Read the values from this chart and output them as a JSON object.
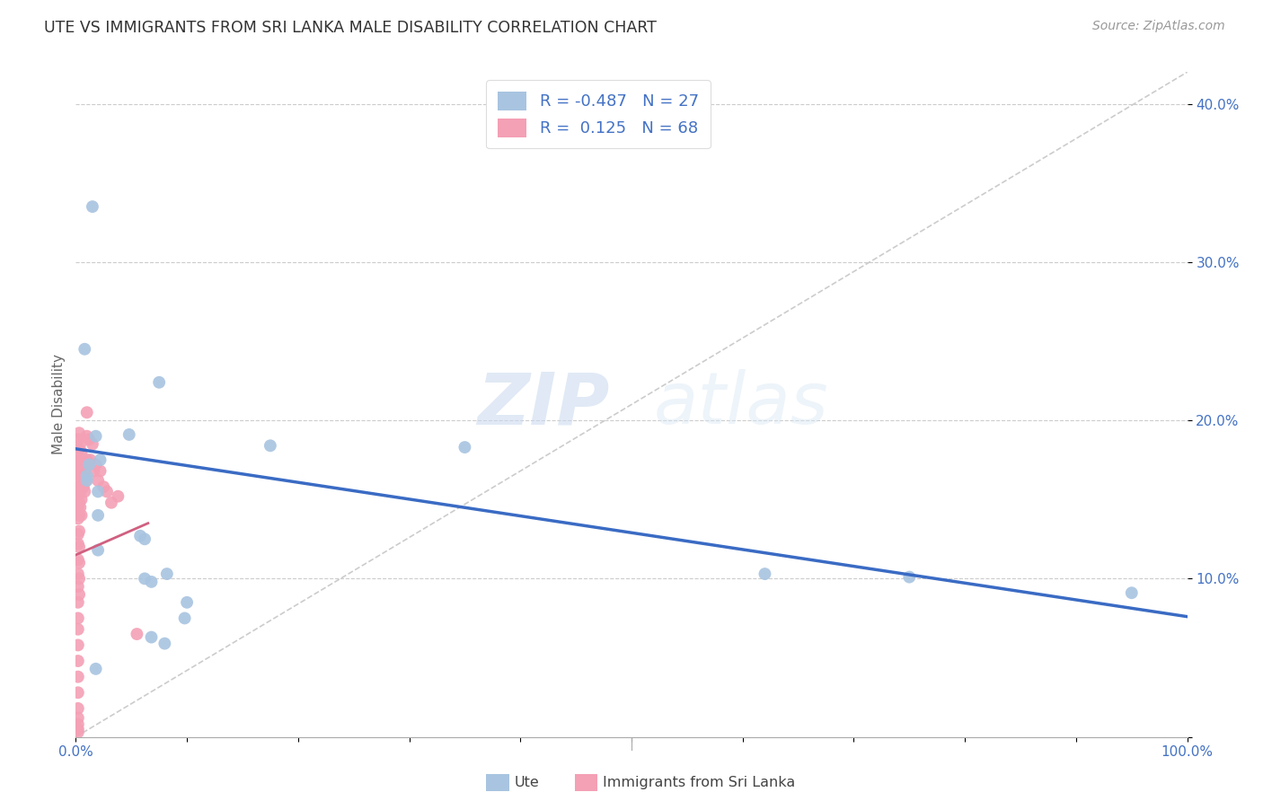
{
  "title": "UTE VS IMMIGRANTS FROM SRI LANKA MALE DISABILITY CORRELATION CHART",
  "source": "Source: ZipAtlas.com",
  "ylabel": "Male Disability",
  "watermark_zip": "ZIP",
  "watermark_atlas": "atlas",
  "xlim": [
    0.0,
    1.0
  ],
  "ylim": [
    0.0,
    0.42
  ],
  "xticks": [
    0.0,
    0.1,
    0.2,
    0.3,
    0.4,
    0.5,
    0.6,
    0.7,
    0.8,
    0.9,
    1.0
  ],
  "xticklabels": [
    "0.0%",
    "",
    "",
    "",
    "",
    "",
    "",
    "",
    "",
    "",
    "100.0%"
  ],
  "yticks": [
    0.0,
    0.1,
    0.2,
    0.3,
    0.4
  ],
  "yticklabels": [
    "",
    "10.0%",
    "20.0%",
    "30.0%",
    "40.0%"
  ],
  "legend_label1": "R = -0.487   N = 27",
  "legend_label2": "R =  0.125   N = 68",
  "ute_color": "#a8c4e0",
  "srilanka_color": "#f4a0b5",
  "ute_line_color": "#3a6bc4",
  "srilanka_line_color": "#d06080",
  "diagonal_color": "#cccccc",
  "ute_scatter_x": [
    0.015,
    0.008,
    0.075,
    0.018,
    0.048,
    0.175,
    0.022,
    0.012,
    0.01,
    0.01,
    0.02,
    0.02,
    0.35,
    0.02,
    0.058,
    0.062,
    0.082,
    0.062,
    0.068,
    0.62,
    0.75,
    0.95,
    0.1,
    0.098,
    0.08,
    0.018,
    0.068
  ],
  "ute_scatter_y": [
    0.335,
    0.245,
    0.224,
    0.19,
    0.191,
    0.184,
    0.175,
    0.172,
    0.165,
    0.162,
    0.155,
    0.14,
    0.183,
    0.118,
    0.127,
    0.125,
    0.103,
    0.1,
    0.098,
    0.103,
    0.101,
    0.091,
    0.085,
    0.075,
    0.059,
    0.043,
    0.063
  ],
  "srilanka_scatter_x": [
    0.002,
    0.002,
    0.002,
    0.002,
    0.002,
    0.002,
    0.002,
    0.002,
    0.002,
    0.002,
    0.002,
    0.002,
    0.002,
    0.002,
    0.002,
    0.002,
    0.002,
    0.002,
    0.002,
    0.002,
    0.002,
    0.002,
    0.002,
    0.002,
    0.003,
    0.003,
    0.003,
    0.003,
    0.003,
    0.003,
    0.003,
    0.003,
    0.003,
    0.003,
    0.003,
    0.003,
    0.004,
    0.004,
    0.004,
    0.004,
    0.004,
    0.005,
    0.005,
    0.005,
    0.005,
    0.005,
    0.006,
    0.006,
    0.007,
    0.007,
    0.008,
    0.008,
    0.009,
    0.01,
    0.01,
    0.01,
    0.012,
    0.013,
    0.015,
    0.016,
    0.018,
    0.02,
    0.022,
    0.025,
    0.028,
    0.032,
    0.038,
    0.055
  ],
  "srilanka_scatter_y": [
    0.188,
    0.175,
    0.168,
    0.158,
    0.152,
    0.145,
    0.138,
    0.128,
    0.122,
    0.112,
    0.103,
    0.095,
    0.085,
    0.075,
    0.068,
    0.058,
    0.048,
    0.038,
    0.028,
    0.018,
    0.012,
    0.008,
    0.005,
    0.003,
    0.192,
    0.182,
    0.175,
    0.165,
    0.158,
    0.148,
    0.14,
    0.13,
    0.12,
    0.11,
    0.1,
    0.09,
    0.185,
    0.175,
    0.165,
    0.155,
    0.145,
    0.18,
    0.17,
    0.16,
    0.15,
    0.14,
    0.175,
    0.165,
    0.172,
    0.158,
    0.168,
    0.155,
    0.162,
    0.205,
    0.19,
    0.175,
    0.188,
    0.175,
    0.185,
    0.168,
    0.172,
    0.162,
    0.168,
    0.158,
    0.155,
    0.148,
    0.152,
    0.065
  ],
  "ute_R": -0.487,
  "ute_N": 27,
  "srilanka_R": 0.125,
  "srilanka_N": 68,
  "background_color": "#ffffff",
  "plot_background": "#ffffff"
}
